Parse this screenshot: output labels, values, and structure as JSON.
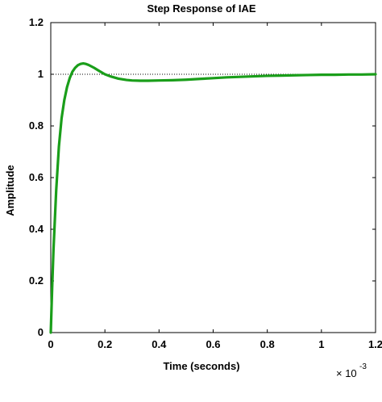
{
  "chart_data": {
    "type": "line",
    "title": "Step Response of IAE",
    "xlabel": "Time (seconds)",
    "ylabel": "Amplitude",
    "x_multiplier_label": "× 10",
    "x_multiplier_exponent": "-3",
    "xlim": [
      0,
      1.2
    ],
    "ylim": [
      0,
      1.2
    ],
    "x_ticks": [
      0,
      0.2,
      0.4,
      0.6,
      0.8,
      1,
      1.2
    ],
    "x_tick_labels": [
      "0",
      "0.2",
      "0.4",
      "0.6",
      "0.8",
      "1",
      "1.2"
    ],
    "y_ticks": [
      0,
      0.2,
      0.4,
      0.6,
      0.8,
      1,
      1.2
    ],
    "y_tick_labels": [
      "0",
      "0.2",
      "0.4",
      "0.6",
      "0.8",
      "1",
      "1.2"
    ],
    "grid": false,
    "reference_line": {
      "y": 1,
      "style": "dotted",
      "color": "#000000"
    },
    "series": [
      {
        "color": "#1a9e1a",
        "x": [
          0,
          0.005,
          0.01,
          0.02,
          0.03,
          0.04,
          0.05,
          0.06,
          0.07,
          0.08,
          0.09,
          0.1,
          0.11,
          0.12,
          0.13,
          0.14,
          0.16,
          0.18,
          0.2,
          0.22,
          0.25,
          0.28,
          0.3,
          0.33,
          0.36,
          0.4,
          0.45,
          0.5,
          0.55,
          0.6,
          0.65,
          0.7,
          0.75,
          0.8,
          0.85,
          0.9,
          0.95,
          1.0,
          1.05,
          1.1,
          1.15,
          1.2
        ],
        "y": [
          0,
          0.17,
          0.32,
          0.55,
          0.72,
          0.83,
          0.9,
          0.95,
          0.985,
          1.01,
          1.025,
          1.035,
          1.04,
          1.042,
          1.04,
          1.036,
          1.025,
          1.012,
          1.0,
          0.992,
          0.983,
          0.978,
          0.976,
          0.975,
          0.975,
          0.976,
          0.977,
          0.979,
          0.982,
          0.985,
          0.988,
          0.99,
          0.992,
          0.994,
          0.995,
          0.996,
          0.997,
          0.998,
          0.998,
          0.999,
          0.999,
          1.0
        ]
      }
    ]
  }
}
